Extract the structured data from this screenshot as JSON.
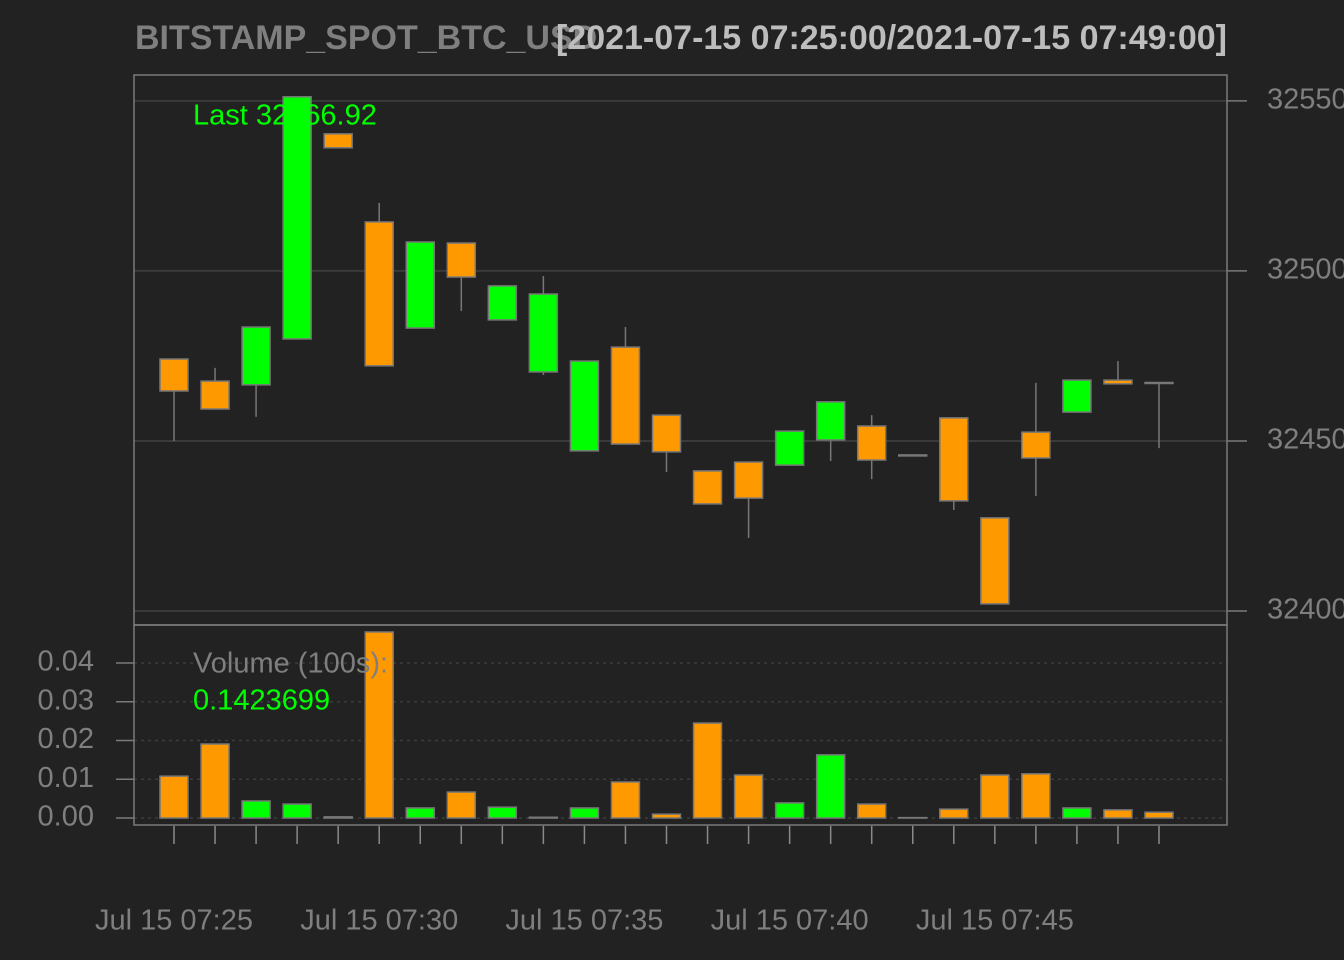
{
  "chart_data": [
    {
      "type": "candlestick",
      "title": "BITSTAMP_SPOT_BTC_USD",
      "subtitle": "[2021-07-15 07:25:00/2021-07-15 07:49:00]",
      "annotation": "Last 32466.92",
      "categories": [
        "Jul 15 07:25",
        null,
        null,
        null,
        null,
        "Jul 15 07:30",
        null,
        null,
        null,
        null,
        "Jul 15 07:35",
        null,
        null,
        null,
        null,
        "Jul 15 07:40",
        null,
        null,
        null,
        null,
        "Jul 15 07:45",
        null,
        null,
        null,
        null
      ],
      "open": [
        32474.1,
        32467.6,
        32466.5,
        32480.0,
        32540.3,
        32514.4,
        32483.2,
        32508.2,
        32485.6,
        32470.3,
        32447.1,
        32477.6,
        32457.6,
        32441.2,
        32443.8,
        32442.9,
        32450.3,
        32454.4,
        32445.9,
        32456.8,
        32427.4,
        32452.6,
        32458.5,
        32467.9,
        32467.2
      ],
      "high": [
        32474.1,
        32471.5,
        32483.5,
        32551.2,
        32540.3,
        32520.0,
        32508.5,
        32508.2,
        32495.6,
        32498.5,
        32473.5,
        32483.5,
        32457.6,
        32441.2,
        32443.8,
        32452.9,
        32461.5,
        32457.6,
        32445.9,
        32456.8,
        32427.4,
        32467.1,
        32467.9,
        32473.5,
        32467.2
      ],
      "low": [
        32450.0,
        32459.4,
        32457.1,
        32480.0,
        32536.2,
        32472.1,
        32483.2,
        32488.2,
        32485.6,
        32469.4,
        32447.1,
        32449.1,
        32440.9,
        32431.5,
        32421.5,
        32442.9,
        32444.1,
        32438.8,
        32445.9,
        32429.7,
        32402.1,
        32433.8,
        32458.5,
        32466.8,
        32447.9
      ],
      "close": [
        32464.7,
        32459.4,
        32483.5,
        32551.2,
        32536.2,
        32472.1,
        32508.5,
        32498.2,
        32495.6,
        32493.2,
        32473.5,
        32449.1,
        32446.8,
        32431.5,
        32433.2,
        32452.9,
        32461.5,
        32444.4,
        32445.9,
        32432.4,
        32402.1,
        32445.0,
        32467.9,
        32466.8,
        32466.92
      ],
      "up_color": "#00ff00",
      "down_color": "#ff9900",
      "ylim": [
        32395.9,
        32557.6
      ],
      "yticks": [
        32400,
        32450,
        32500,
        32550
      ],
      "grid": true
    },
    {
      "type": "bar",
      "title": "Volume (100s):",
      "annotation": "0.1423699",
      "values": [
        0.0108,
        0.0191,
        0.0044,
        0.0036,
        0.0003,
        0.048,
        0.0026,
        0.0067,
        0.0028,
        0.0002,
        0.0026,
        0.0093,
        0.001,
        0.0245,
        0.0111,
        0.0039,
        0.0163,
        0.0036,
        0.0001,
        0.0023,
        0.0111,
        0.0114,
        0.0026,
        0.0021,
        0.0015
      ],
      "ylim": [
        -0.0018,
        0.0498
      ],
      "yticks": [
        {
          "value": 0,
          "label": "0.00"
        },
        {
          "value": 0.01,
          "label": "0.01"
        },
        {
          "value": 0.02,
          "label": "0.02"
        },
        {
          "value": 0.03,
          "label": "0.03"
        },
        {
          "value": 0.04,
          "label": "0.04"
        }
      ],
      "grid": true
    }
  ]
}
